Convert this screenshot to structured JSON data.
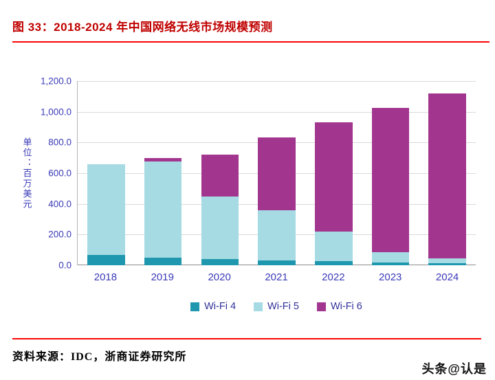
{
  "header": {
    "title": "图 33：2018-2024 年中国网络无线市场规模预测"
  },
  "chart_data": {
    "type": "bar",
    "stacked": true,
    "title": "2018-2024 年中国网络无线市场规模预测",
    "ylabel": "单位：百万美元",
    "ylim": [
      0,
      1200
    ],
    "ytick_labels": [
      "1,200.0",
      "1,000.0",
      "800.0",
      "600.0",
      "400.0",
      "200.0",
      "0.0"
    ],
    "grid": true,
    "legend_position": "bottom",
    "categories": [
      "2018",
      "2019",
      "2020",
      "2021",
      "2022",
      "2023",
      "2024"
    ],
    "series": [
      {
        "name": "Wi-Fi 4",
        "color": "#1f97ae",
        "values": [
          65,
          50,
          40,
          30,
          25,
          20,
          15
        ]
      },
      {
        "name": "Wi-Fi 5",
        "color": "#a6dbe3",
        "values": [
          595,
          625,
          410,
          330,
          195,
          65,
          30
        ]
      },
      {
        "name": "Wi-Fi 6",
        "color": "#a2368f",
        "values": [
          0,
          25,
          270,
          475,
          710,
          940,
          1075
        ]
      }
    ]
  },
  "footer": {
    "source": "资料来源：IDC，浙商证券研究所",
    "watermark": "头条@认是"
  },
  "colors": {
    "title_red": "#c00000",
    "rule_red": "#fe0202",
    "axis_blue": "#3939b8"
  }
}
